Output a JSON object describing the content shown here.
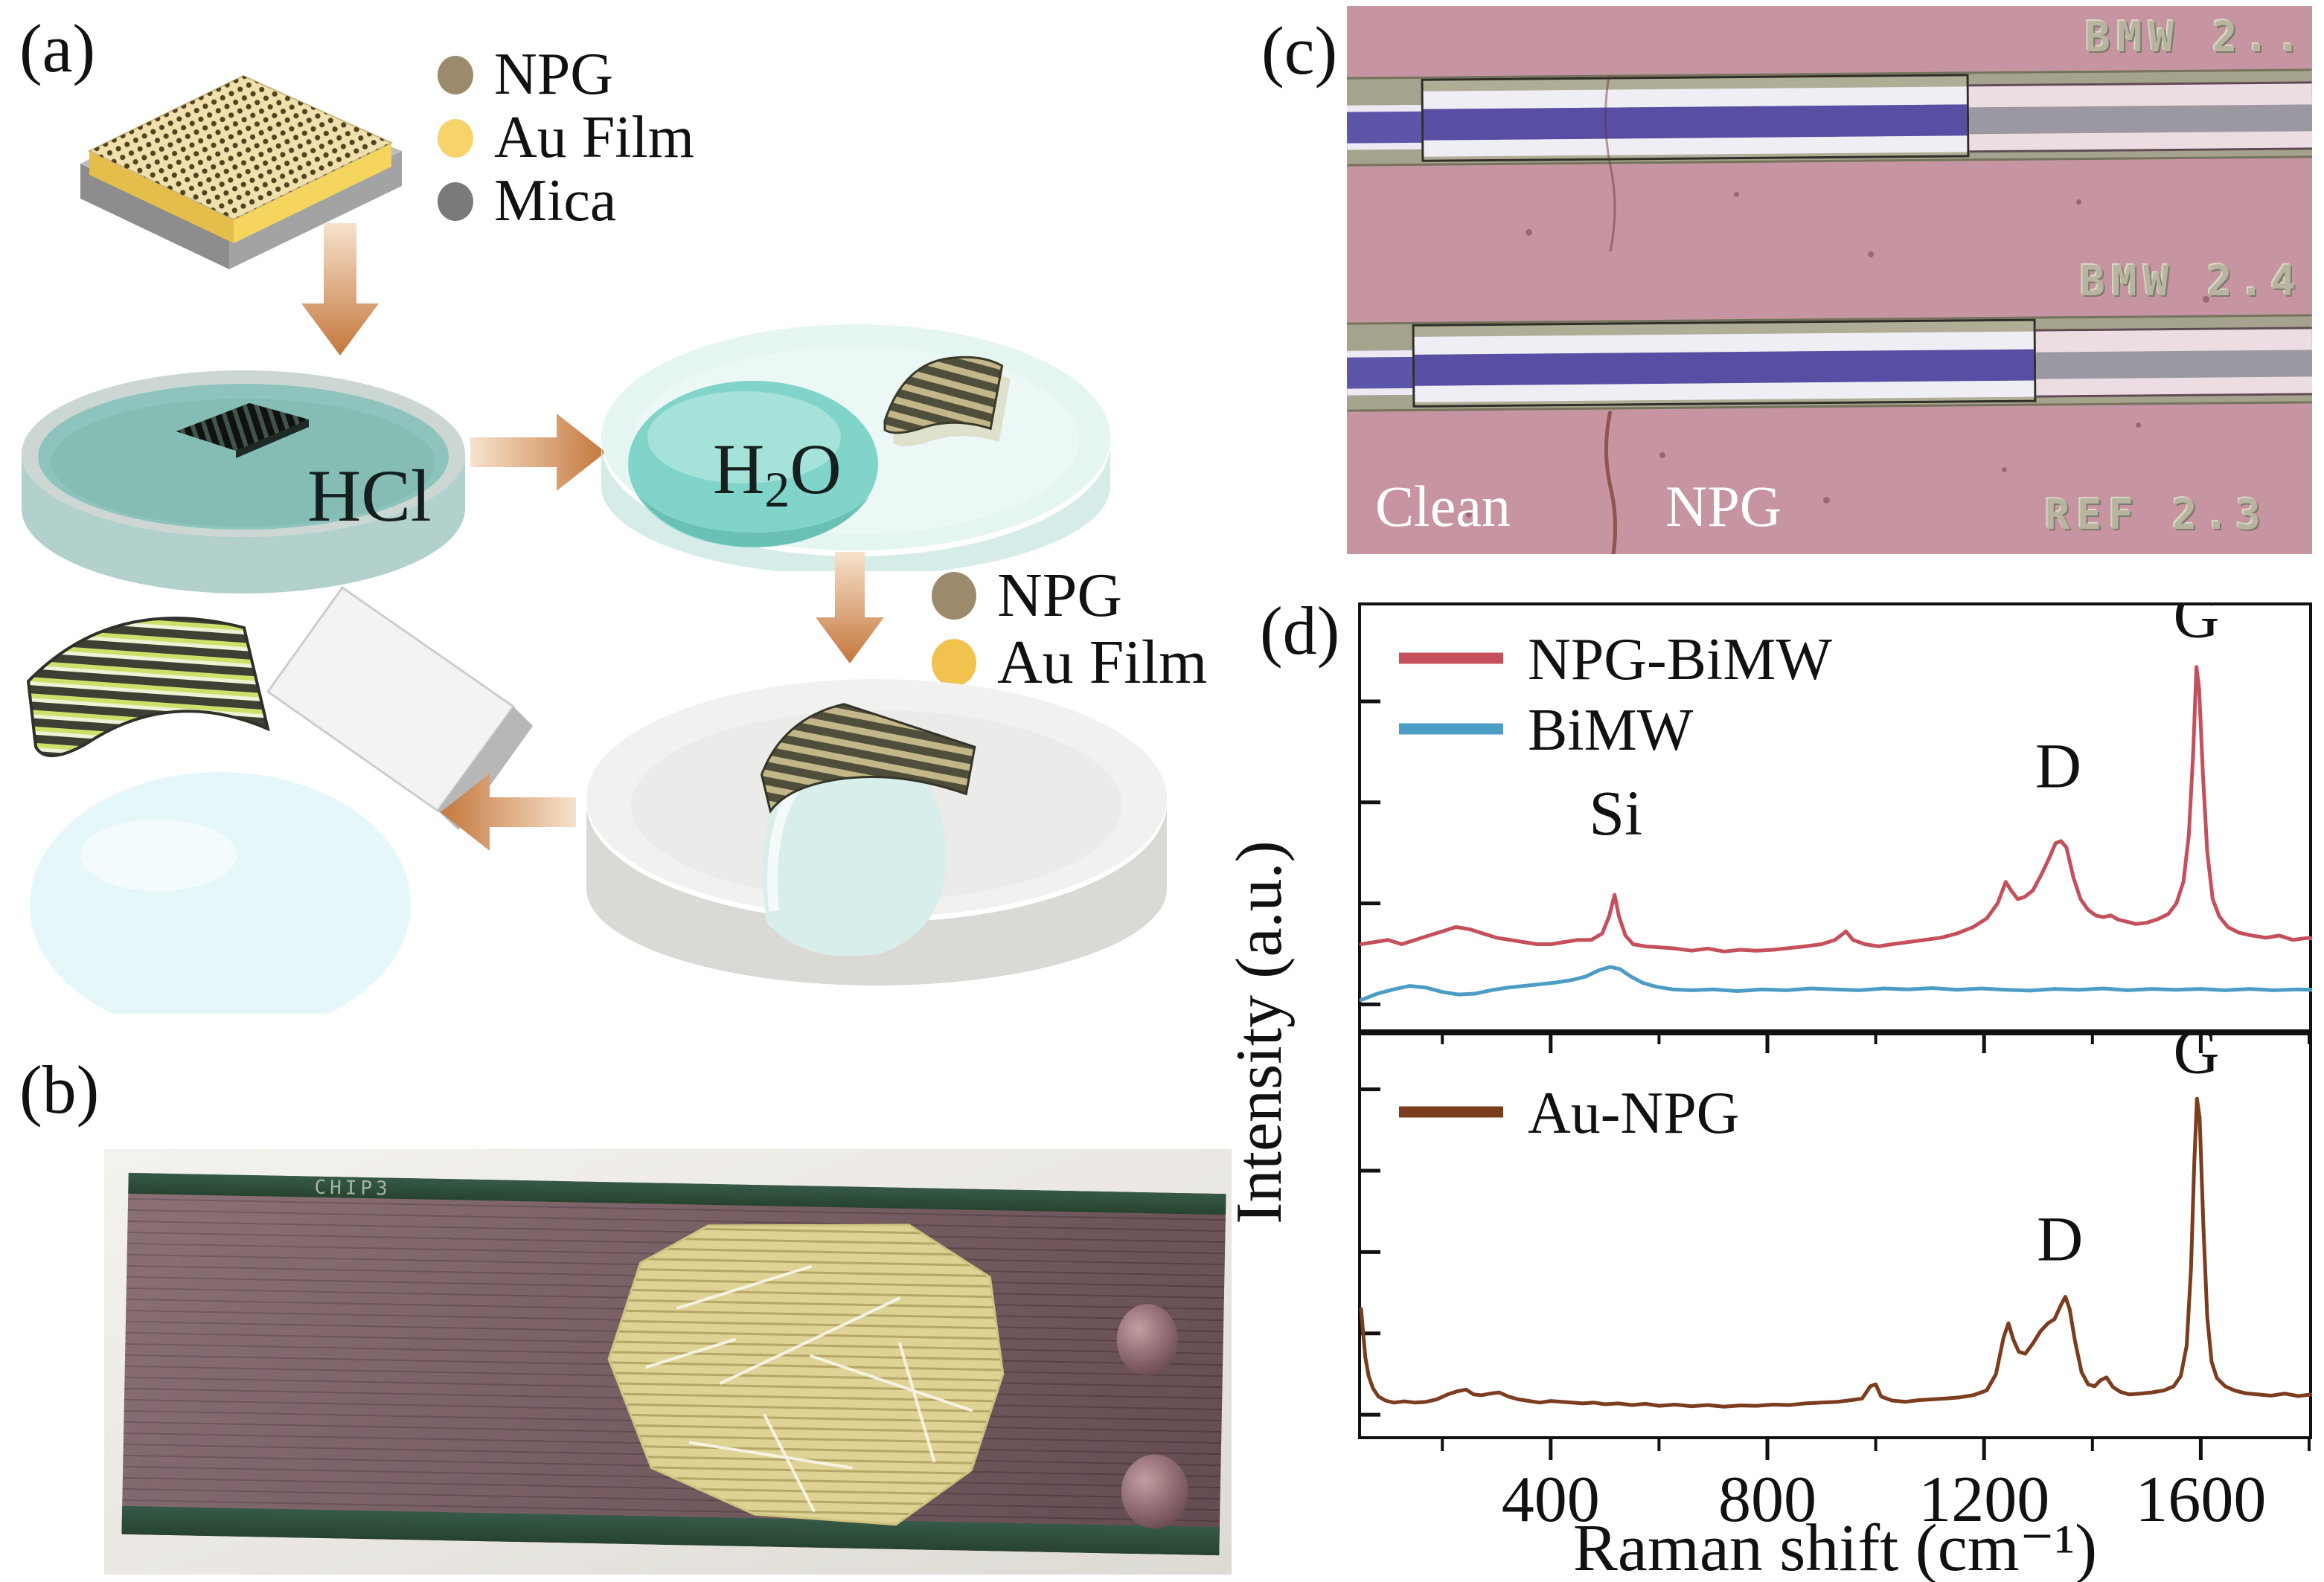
{
  "panels": {
    "a": {
      "label": "(a)",
      "legend_top": [
        {
          "label": "NPG",
          "color": "#9c8a6d"
        },
        {
          "label": "Au Film",
          "color": "#f6d469"
        },
        {
          "label": "Mica",
          "color": "#7a7a7a"
        }
      ],
      "legend_mid": [
        {
          "label": "NPG",
          "color": "#9c8a6d"
        },
        {
          "label": "Au Film",
          "color": "#f2c24f"
        }
      ],
      "dish1_label": "HCl",
      "dish2_label": {
        "pre": "H",
        "sub": "2",
        "post": "O"
      }
    },
    "b": {
      "label": "(b)",
      "chip_tag": "CHIP3"
    },
    "c": {
      "label": "(c)",
      "region_left": "Clean",
      "region_right": "NPG",
      "etched_top": "BMW 2..",
      "etched_mid": "BMW 2.4",
      "etched_bottom": "REF 2.3"
    },
    "d": {
      "label": "(d)"
    }
  },
  "chart_data": [
    {
      "type": "line",
      "ylabel": "Intensity (a.u.)",
      "xlim": [
        50,
        1800
      ],
      "xticks": [
        400,
        800,
        1200,
        1600
      ],
      "xminor": [
        200,
        600,
        1000,
        1400,
        1800
      ],
      "yticks": [
        0.23,
        0.465,
        0.7,
        0.935
      ],
      "grid": false,
      "legend_position": "upper-left",
      "legend": [
        {
          "name": "NPG-BiMW",
          "color": "#c5505c"
        },
        {
          "name": "BiMW",
          "color": "#4c9dc5"
        }
      ],
      "annotations": [
        {
          "text": "Si",
          "x": 520,
          "y": 0.46
        },
        {
          "text": "D",
          "x": 1337,
          "y": 0.57
        },
        {
          "text": "G",
          "x": 1592,
          "y": 0.92
        }
      ],
      "series": [
        {
          "name": "NPG-BiMW",
          "color": "#c5505c",
          "points": [
            [
              50,
              0.205
            ],
            [
              75,
              0.21
            ],
            [
              100,
              0.215
            ],
            [
              125,
              0.205
            ],
            [
              150,
              0.215
            ],
            [
              175,
              0.225
            ],
            [
              200,
              0.235
            ],
            [
              225,
              0.245
            ],
            [
              250,
              0.24
            ],
            [
              275,
              0.23
            ],
            [
              300,
              0.22
            ],
            [
              325,
              0.215
            ],
            [
              350,
              0.21
            ],
            [
              375,
              0.205
            ],
            [
              400,
              0.205
            ],
            [
              425,
              0.21
            ],
            [
              450,
              0.215
            ],
            [
              475,
              0.215
            ],
            [
              495,
              0.23
            ],
            [
              508,
              0.27
            ],
            [
              518,
              0.32
            ],
            [
              526,
              0.27
            ],
            [
              538,
              0.225
            ],
            [
              552,
              0.205
            ],
            [
              575,
              0.2
            ],
            [
              600,
              0.198
            ],
            [
              630,
              0.195
            ],
            [
              660,
              0.19
            ],
            [
              690,
              0.195
            ],
            [
              720,
              0.188
            ],
            [
              750,
              0.192
            ],
            [
              780,
              0.19
            ],
            [
              810,
              0.192
            ],
            [
              840,
              0.196
            ],
            [
              870,
              0.2
            ],
            [
              900,
              0.205
            ],
            [
              925,
              0.215
            ],
            [
              945,
              0.235
            ],
            [
              958,
              0.215
            ],
            [
              980,
              0.205
            ],
            [
              1005,
              0.2
            ],
            [
              1030,
              0.205
            ],
            [
              1060,
              0.21
            ],
            [
              1090,
              0.215
            ],
            [
              1120,
              0.22
            ],
            [
              1150,
              0.23
            ],
            [
              1180,
              0.245
            ],
            [
              1205,
              0.265
            ],
            [
              1225,
              0.3
            ],
            [
              1240,
              0.35
            ],
            [
              1250,
              0.33
            ],
            [
              1262,
              0.31
            ],
            [
              1275,
              0.315
            ],
            [
              1290,
              0.33
            ],
            [
              1305,
              0.365
            ],
            [
              1320,
              0.405
            ],
            [
              1332,
              0.44
            ],
            [
              1342,
              0.445
            ],
            [
              1352,
              0.43
            ],
            [
              1365,
              0.36
            ],
            [
              1378,
              0.31
            ],
            [
              1392,
              0.285
            ],
            [
              1406,
              0.272
            ],
            [
              1420,
              0.268
            ],
            [
              1434,
              0.272
            ],
            [
              1448,
              0.262
            ],
            [
              1462,
              0.258
            ],
            [
              1480,
              0.252
            ],
            [
              1500,
              0.255
            ],
            [
              1520,
              0.263
            ],
            [
              1540,
              0.275
            ],
            [
              1555,
              0.3
            ],
            [
              1568,
              0.35
            ],
            [
              1578,
              0.46
            ],
            [
              1586,
              0.65
            ],
            [
              1592,
              0.85
            ],
            [
              1597,
              0.8
            ],
            [
              1604,
              0.6
            ],
            [
              1612,
              0.42
            ],
            [
              1622,
              0.31
            ],
            [
              1634,
              0.27
            ],
            [
              1650,
              0.245
            ],
            [
              1670,
              0.232
            ],
            [
              1695,
              0.225
            ],
            [
              1720,
              0.22
            ],
            [
              1745,
              0.225
            ],
            [
              1770,
              0.215
            ],
            [
              1800,
              0.22
            ],
            [
              1825,
              0.21
            ],
            [
              1850,
              0.215
            ]
          ]
        },
        {
          "name": "BiMW",
          "color": "#4c9dc5",
          "points": [
            [
              50,
              0.075
            ],
            [
              80,
              0.09
            ],
            [
              110,
              0.1
            ],
            [
              140,
              0.108
            ],
            [
              170,
              0.104
            ],
            [
              200,
              0.094
            ],
            [
              230,
              0.088
            ],
            [
              260,
              0.09
            ],
            [
              290,
              0.098
            ],
            [
              320,
              0.104
            ],
            [
              350,
              0.108
            ],
            [
              380,
              0.112
            ],
            [
              410,
              0.116
            ],
            [
              440,
              0.122
            ],
            [
              465,
              0.13
            ],
            [
              490,
              0.145
            ],
            [
              510,
              0.152
            ],
            [
              528,
              0.147
            ],
            [
              548,
              0.13
            ],
            [
              570,
              0.115
            ],
            [
              595,
              0.106
            ],
            [
              625,
              0.1
            ],
            [
              660,
              0.098
            ],
            [
              700,
              0.1
            ],
            [
              745,
              0.096
            ],
            [
              790,
              0.1
            ],
            [
              835,
              0.098
            ],
            [
              880,
              0.102
            ],
            [
              925,
              0.1
            ],
            [
              970,
              0.098
            ],
            [
              1015,
              0.102
            ],
            [
              1060,
              0.1
            ],
            [
              1105,
              0.103
            ],
            [
              1150,
              0.099
            ],
            [
              1195,
              0.102
            ],
            [
              1240,
              0.099
            ],
            [
              1285,
              0.097
            ],
            [
              1330,
              0.101
            ],
            [
              1375,
              0.099
            ],
            [
              1420,
              0.102
            ],
            [
              1465,
              0.098
            ],
            [
              1510,
              0.101
            ],
            [
              1555,
              0.099
            ],
            [
              1600,
              0.101
            ],
            [
              1645,
              0.098
            ],
            [
              1690,
              0.101
            ],
            [
              1735,
              0.098
            ],
            [
              1780,
              0.1
            ],
            [
              1825,
              0.098
            ],
            [
              1850,
              0.1
            ]
          ]
        }
      ]
    },
    {
      "type": "line",
      "xlim": [
        50,
        1800
      ],
      "xticks": [
        400,
        800,
        1200,
        1600
      ],
      "xtick_labels": [
        "400",
        "800",
        "1200",
        "1600"
      ],
      "xminor": [
        200,
        600,
        1000,
        1400,
        1800
      ],
      "yticks": [
        0.14,
        0.34,
        0.54,
        0.74,
        0.94
      ],
      "grid": false,
      "xlabel": "Raman shift (cm⁻¹)",
      "legend": [
        {
          "name": "Au-NPG",
          "color": "#7b3d1e"
        }
      ],
      "annotations": [
        {
          "text": "D",
          "x": 1340,
          "y": 0.44
        },
        {
          "text": "G",
          "x": 1592,
          "y": 0.9
        }
      ],
      "series": [
        {
          "name": "Au-NPG",
          "color": "#7b3d1e",
          "points": [
            [
              50,
              0.32
            ],
            [
              54,
              0.26
            ],
            [
              58,
              0.2
            ],
            [
              64,
              0.155
            ],
            [
              72,
              0.125
            ],
            [
              82,
              0.105
            ],
            [
              95,
              0.095
            ],
            [
              110,
              0.09
            ],
            [
              130,
              0.093
            ],
            [
              150,
              0.09
            ],
            [
              170,
              0.092
            ],
            [
              190,
              0.098
            ],
            [
              210,
              0.11
            ],
            [
              228,
              0.118
            ],
            [
              244,
              0.122
            ],
            [
              258,
              0.11
            ],
            [
              272,
              0.108
            ],
            [
              288,
              0.112
            ],
            [
              305,
              0.115
            ],
            [
              322,
              0.105
            ],
            [
              340,
              0.098
            ],
            [
              360,
              0.094
            ],
            [
              380,
              0.09
            ],
            [
              400,
              0.094
            ],
            [
              420,
              0.092
            ],
            [
              440,
              0.09
            ],
            [
              460,
              0.088
            ],
            [
              480,
              0.09
            ],
            [
              500,
              0.086
            ],
            [
              525,
              0.088
            ],
            [
              550,
              0.084
            ],
            [
              575,
              0.087
            ],
            [
              600,
              0.082
            ],
            [
              630,
              0.085
            ],
            [
              660,
              0.081
            ],
            [
              690,
              0.084
            ],
            [
              720,
              0.08
            ],
            [
              750,
              0.083
            ],
            [
              780,
              0.082
            ],
            [
              810,
              0.085
            ],
            [
              840,
              0.084
            ],
            [
              870,
              0.088
            ],
            [
              900,
              0.09
            ],
            [
              930,
              0.092
            ],
            [
              955,
              0.096
            ],
            [
              975,
              0.1
            ],
            [
              990,
              0.13
            ],
            [
              1000,
              0.135
            ],
            [
              1010,
              0.105
            ],
            [
              1030,
              0.095
            ],
            [
              1055,
              0.092
            ],
            [
              1080,
              0.096
            ],
            [
              1105,
              0.098
            ],
            [
              1130,
              0.1
            ],
            [
              1155,
              0.103
            ],
            [
              1180,
              0.108
            ],
            [
              1205,
              0.12
            ],
            [
              1222,
              0.16
            ],
            [
              1236,
              0.25
            ],
            [
              1245,
              0.285
            ],
            [
              1254,
              0.245
            ],
            [
              1264,
              0.215
            ],
            [
              1276,
              0.21
            ],
            [
              1290,
              0.235
            ],
            [
              1304,
              0.265
            ],
            [
              1318,
              0.285
            ],
            [
              1330,
              0.295
            ],
            [
              1342,
              0.33
            ],
            [
              1350,
              0.35
            ],
            [
              1358,
              0.32
            ],
            [
              1368,
              0.24
            ],
            [
              1380,
              0.165
            ],
            [
              1392,
              0.135
            ],
            [
              1404,
              0.13
            ],
            [
              1415,
              0.145
            ],
            [
              1426,
              0.152
            ],
            [
              1438,
              0.128
            ],
            [
              1452,
              0.116
            ],
            [
              1468,
              0.11
            ],
            [
              1488,
              0.112
            ],
            [
              1510,
              0.115
            ],
            [
              1532,
              0.12
            ],
            [
              1550,
              0.13
            ],
            [
              1563,
              0.155
            ],
            [
              1574,
              0.23
            ],
            [
              1582,
              0.42
            ],
            [
              1588,
              0.68
            ],
            [
              1593,
              0.837
            ],
            [
              1598,
              0.79
            ],
            [
              1605,
              0.52
            ],
            [
              1612,
              0.3
            ],
            [
              1620,
              0.19
            ],
            [
              1630,
              0.15
            ],
            [
              1645,
              0.13
            ],
            [
              1662,
              0.12
            ],
            [
              1682,
              0.113
            ],
            [
              1705,
              0.11
            ],
            [
              1730,
              0.107
            ],
            [
              1755,
              0.112
            ],
            [
              1780,
              0.106
            ],
            [
              1805,
              0.11
            ],
            [
              1830,
              0.105
            ],
            [
              1850,
              0.108
            ]
          ]
        }
      ]
    }
  ]
}
